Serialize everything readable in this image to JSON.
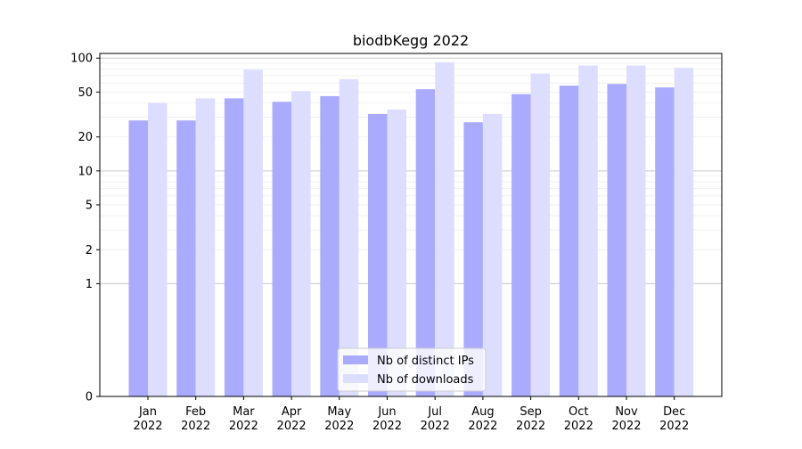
{
  "chart_data": {
    "type": "bar",
    "title": "biodbKegg 2022",
    "xlabel": "",
    "ylabel": "",
    "yscale": "symlog",
    "ylim": [
      0,
      110
    ],
    "yticks": [
      0,
      1,
      2,
      5,
      10,
      20,
      50,
      100
    ],
    "grid": "horizontal",
    "legend_position": "bottom-center",
    "categories": [
      "Jan\n2022",
      "Feb\n2022",
      "Mar\n2022",
      "Apr\n2022",
      "May\n2022",
      "Jun\n2022",
      "Jul\n2022",
      "Aug\n2022",
      "Sep\n2022",
      "Oct\n2022",
      "Nov\n2022",
      "Dec\n2022"
    ],
    "series": [
      {
        "name": "Nb of distinct IPs",
        "color": "#aaaaff",
        "values": [
          28,
          28,
          44,
          41,
          46,
          32,
          53,
          27,
          48,
          57,
          59,
          55
        ]
      },
      {
        "name": "Nb of downloads",
        "color": "#ddddff",
        "values": [
          40,
          44,
          79,
          51,
          65,
          35,
          92,
          32,
          73,
          86,
          86,
          82
        ]
      }
    ]
  }
}
